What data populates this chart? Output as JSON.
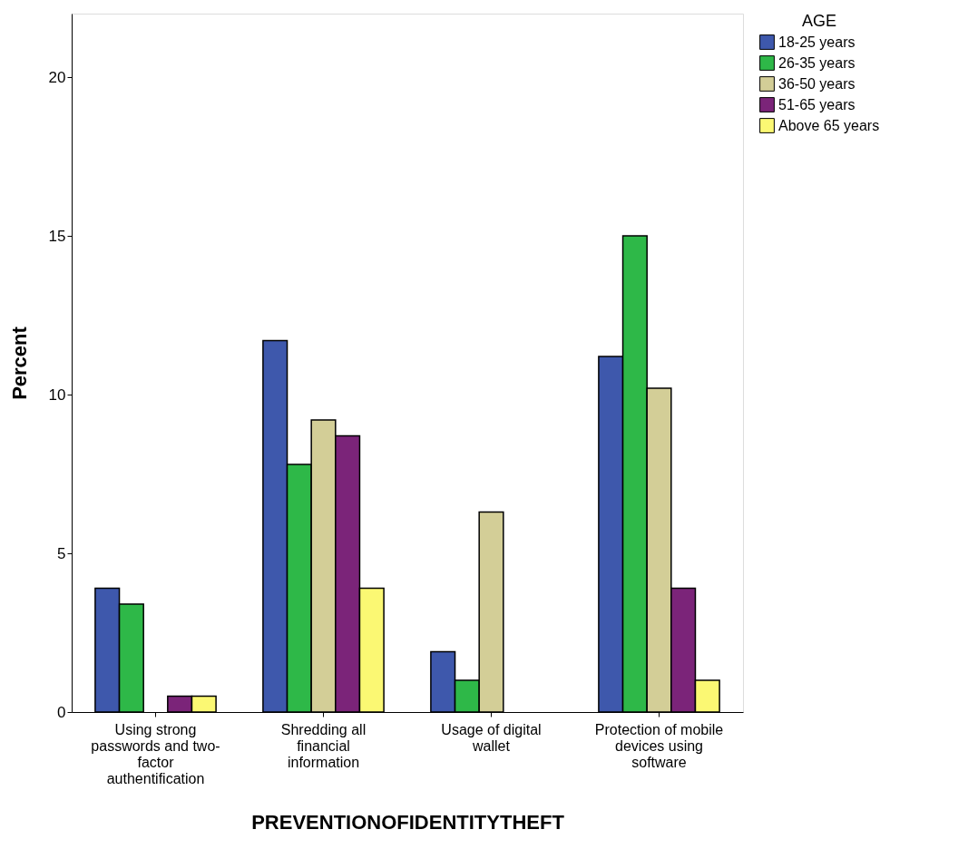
{
  "chart_data": {
    "type": "bar",
    "xlabel": "PREVENTIONOFIDENTITYTHEFT",
    "ylabel": "Percent",
    "legend_title": "AGE",
    "categories": [
      "Using strong passwords and two-factor authentification",
      "Shredding all financial information",
      "Usage of digital wallet",
      "Protection of mobile devices using software"
    ],
    "series": [
      {
        "name": "18-25 years",
        "color": "#3e58ac",
        "values": [
          3.9,
          11.7,
          1.9,
          11.2
        ]
      },
      {
        "name": "26-35 years",
        "color": "#2eb848",
        "values": [
          3.4,
          7.8,
          1.0,
          15.0
        ]
      },
      {
        "name": "36-50 years",
        "color": "#d3ce97",
        "values": [
          null,
          9.2,
          6.3,
          10.2
        ]
      },
      {
        "name": "51-65 years",
        "color": "#7b2479",
        "values": [
          0.5,
          8.7,
          null,
          3.9
        ]
      },
      {
        "name": "Above 65 years",
        "color": "#fbf873",
        "values": [
          0.5,
          3.9,
          null,
          1.0
        ]
      }
    ],
    "ylim": [
      0,
      22
    ],
    "yticks": [
      0,
      5,
      10,
      15,
      20
    ],
    "grid": false,
    "legend": "top right"
  }
}
